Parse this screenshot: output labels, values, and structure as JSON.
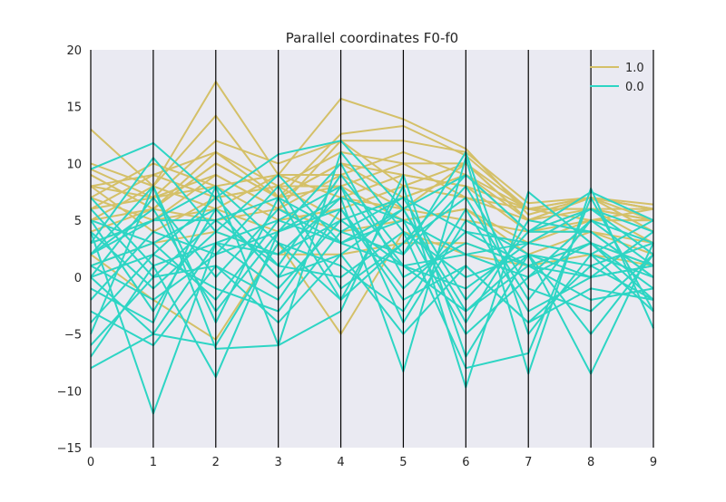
{
  "chart_data": {
    "type": "parallel-coordinates",
    "title": "Parallel coordinates F0-f0",
    "xlabel": "",
    "ylabel": "",
    "axes": [
      0,
      1,
      2,
      3,
      4,
      5,
      6,
      7,
      8,
      9
    ],
    "x_ticks": [
      "0",
      "1",
      "2",
      "3",
      "4",
      "5",
      "6",
      "7",
      "8",
      "9"
    ],
    "y_ticks": [
      "20",
      "15",
      "10",
      "5",
      "0",
      "−5",
      "−10",
      "−15"
    ],
    "ylim": [
      -15,
      20
    ],
    "background": "#eaeaf2",
    "grid": "vertical axis lines only",
    "legend": {
      "location": "top-right",
      "entries": [
        "1.0",
        "0.0"
      ]
    },
    "series": [
      {
        "name": "1.0",
        "color": "#d4c068",
        "lines": [
          [
            13,
            8,
            17.2,
            9,
            15.7,
            13.9,
            11.3,
            5.5,
            7,
            6.4
          ],
          [
            10,
            8,
            14.2,
            7,
            12.6,
            13.3,
            10.7,
            6,
            7,
            6
          ],
          [
            9.5,
            7,
            12,
            10,
            12,
            12,
            11,
            6.5,
            7,
            6
          ],
          [
            8,
            9,
            11,
            8,
            11,
            10,
            10,
            5,
            6,
            5
          ],
          [
            9,
            6,
            10,
            7,
            10,
            9,
            8,
            6,
            7,
            5
          ],
          [
            7,
            10,
            8,
            9,
            9,
            11,
            9,
            4,
            5,
            6
          ],
          [
            8,
            7,
            9,
            6,
            12,
            8,
            10,
            5,
            7,
            4
          ],
          [
            6,
            9,
            7,
            8,
            8,
            10,
            7,
            6,
            6,
            5
          ],
          [
            9,
            6,
            11,
            7,
            10,
            7,
            9,
            5,
            7,
            6
          ],
          [
            5,
            8,
            6,
            9,
            7,
            9,
            8,
            4,
            6,
            3
          ],
          [
            7,
            5,
            9,
            6,
            9,
            6,
            10,
            6,
            5,
            5
          ],
          [
            6,
            7,
            8,
            5,
            6,
            8,
            7,
            5,
            7,
            4
          ],
          [
            4,
            6,
            10,
            7,
            8,
            5,
            6,
            3,
            5,
            5
          ],
          [
            8,
            4,
            7,
            8,
            5,
            7,
            9,
            6,
            6,
            6
          ],
          [
            3,
            5,
            6,
            4,
            7,
            6,
            5,
            4,
            4,
            3
          ],
          [
            2,
            -2,
            -5.5,
            3,
            -5,
            4,
            2,
            1,
            3,
            1
          ],
          [
            5,
            6,
            5,
            6,
            4,
            5,
            6,
            2,
            4,
            2
          ],
          [
            1,
            3,
            4,
            2,
            2,
            3,
            3,
            1,
            2,
            1
          ]
        ]
      },
      {
        "name": "0.0",
        "color": "#2dd5c4",
        "lines": [
          [
            9.5,
            11.8,
            7,
            10.8,
            12,
            6,
            9,
            4,
            7.5,
            5
          ],
          [
            -8,
            -5,
            -6,
            3,
            -2,
            8,
            -9.7,
            7.5,
            3,
            -2
          ],
          [
            4,
            -12,
            3,
            2,
            5,
            1,
            -3,
            1,
            0,
            1
          ],
          [
            -7,
            1,
            -8.8,
            4,
            7,
            -8.3,
            10.5,
            -8.5,
            7.8,
            -4.5
          ],
          [
            2,
            5,
            8,
            -6,
            -3,
            9,
            -7,
            2,
            -8.5,
            3
          ],
          [
            -5,
            8,
            -6.3,
            -6,
            11,
            4,
            -8,
            -6.7,
            7,
            -3
          ],
          [
            3,
            10.5,
            4,
            9,
            3,
            5,
            2,
            0,
            3,
            1
          ],
          [
            0,
            2,
            7,
            1,
            9,
            2,
            11,
            -5,
            2,
            0
          ],
          [
            6,
            0,
            5,
            7,
            4,
            7,
            4,
            3,
            6,
            4
          ],
          [
            -3,
            -6,
            1,
            -2,
            6,
            -2,
            1,
            -4,
            1,
            -2
          ],
          [
            1,
            3,
            -2,
            5,
            8,
            -4,
            5,
            2,
            -5,
            2
          ],
          [
            5,
            -3,
            6,
            0,
            2,
            6,
            -4,
            5,
            4,
            0
          ],
          [
            -2,
            4,
            2,
            8,
            -1,
            3,
            7,
            -2,
            5,
            3
          ],
          [
            2,
            6,
            -3,
            4,
            10,
            0,
            3,
            1,
            -2,
            -1
          ],
          [
            7,
            1,
            3,
            -1,
            5,
            7,
            -2,
            4,
            6,
            2
          ],
          [
            -1,
            -4,
            8,
            3,
            1,
            -3,
            6,
            -3,
            0,
            4
          ],
          [
            0,
            7,
            0,
            6,
            3,
            1,
            2,
            3,
            2,
            -3
          ],
          [
            4,
            -1,
            4,
            2,
            7,
            5,
            -5,
            0,
            5,
            1
          ],
          [
            -4,
            2,
            -1,
            -3,
            4,
            2,
            8,
            -1,
            -3,
            2
          ],
          [
            3,
            5,
            5,
            1,
            0,
            4,
            0,
            2,
            1,
            3
          ],
          [
            1,
            -2,
            2,
            4,
            6,
            -1,
            4,
            1,
            3,
            -1
          ],
          [
            -6,
            0,
            1,
            -4,
            2,
            -5,
            1,
            -4,
            -1,
            -2
          ],
          [
            2,
            8,
            -4,
            7,
            -2,
            3,
            9,
            4,
            4,
            0
          ],
          [
            5,
            3,
            6,
            0,
            8,
            1,
            -1,
            3,
            2,
            5
          ],
          [
            0,
            -5,
            3,
            5,
            3,
            6,
            -3,
            2,
            0,
            1
          ]
        ]
      }
    ]
  }
}
